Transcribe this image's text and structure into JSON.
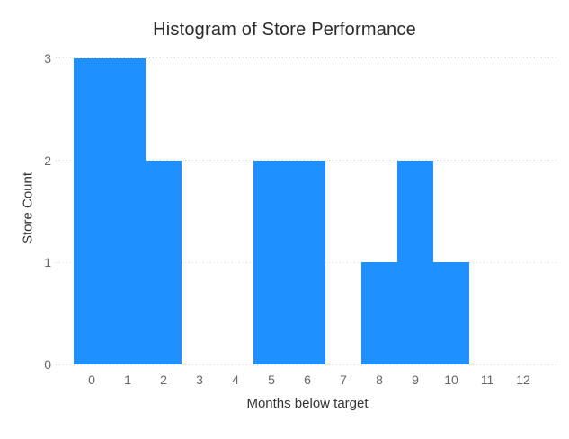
{
  "chart_data": {
    "type": "bar",
    "subtype": "histogram",
    "title": "Histogram of Store Performance",
    "xlabel": "Months below target",
    "ylabel": "Store Count",
    "categories": [
      0,
      1,
      2,
      3,
      4,
      5,
      6,
      7,
      8,
      9,
      10,
      11,
      12
    ],
    "counts": [
      3,
      3,
      2,
      0,
      0,
      2,
      2,
      0,
      1,
      2,
      1,
      0,
      0
    ],
    "bin_width": 1,
    "x_ticks": [
      0,
      1,
      2,
      3,
      4,
      5,
      6,
      7,
      8,
      9,
      10,
      11,
      12
    ],
    "y_ticks": [
      0,
      1,
      2,
      3
    ],
    "xlim": [
      -1,
      13
    ],
    "ylim": [
      0,
      3.06
    ],
    "grid": "horizontal-dotted",
    "legend": "none",
    "colors": {
      "bar": "#1E90FF",
      "gridline": "#d6d6d6",
      "tick_label": "#666666",
      "axis_title": "#333333",
      "title": "#2b2b2b",
      "background": "#ffffff"
    }
  }
}
